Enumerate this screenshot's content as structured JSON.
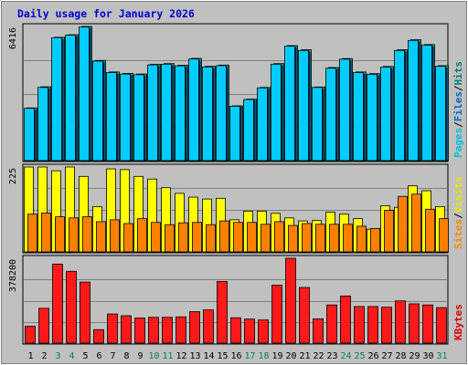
{
  "chart_data": {
    "type": "bar",
    "title": "Daily usage for January 2026",
    "days": [
      "1",
      "2",
      "3",
      "4",
      "5",
      "6",
      "7",
      "8",
      "9",
      "10",
      "11",
      "12",
      "13",
      "14",
      "15",
      "16",
      "17",
      "18",
      "19",
      "20",
      "21",
      "22",
      "23",
      "24",
      "25",
      "26",
      "27",
      "28",
      "29",
      "30",
      "31"
    ],
    "weekend_days": [
      "3",
      "4",
      "10",
      "11",
      "17",
      "18",
      "24",
      "25",
      "31"
    ],
    "panels": [
      {
        "id": "top",
        "max_label": "6416",
        "max": 6416,
        "legend": [
          {
            "text": "Pages",
            "color": "#00c0d8"
          },
          {
            "text": "/",
            "color": "#000000"
          },
          {
            "text": "Files",
            "color": "#0066cc"
          },
          {
            "text": "/",
            "color": "#000000"
          },
          {
            "text": "Hits",
            "color": "#008070"
          }
        ],
        "series": [
          {
            "name": "Hits",
            "color": "#00a890",
            "values": [
              2520,
              3530,
              5900,
              6020,
              6416,
              4790,
              4240,
              4170,
              4140,
              4610,
              4640,
              4560,
              4890,
              4510,
              4570,
              2620,
              2940,
              3500,
              4640,
              5500,
              5300,
              3520,
              4450,
              4880,
              4240,
              4160,
              4500,
              5300,
              5780,
              5550,
              4540
            ]
          },
          {
            "name": "Files",
            "color": "#0033aa",
            "values": [
              2400,
              3420,
              5800,
              5920,
              6300,
              4680,
              4130,
              4060,
              4030,
              4500,
              4530,
              4450,
              4780,
              4400,
              4460,
              2550,
              2860,
              3410,
              4530,
              5390,
              5190,
              3410,
              4340,
              4770,
              4130,
              4050,
              4390,
              5190,
              5670,
              5440,
              4430
            ]
          },
          {
            "name": "Pages",
            "color": "#00ccff",
            "values": [
              2500,
              3500,
              5880,
              6000,
              6390,
              4760,
              4210,
              4140,
              4110,
              4580,
              4610,
              4530,
              4860,
              4480,
              4540,
              2600,
              2920,
              3480,
              4610,
              5470,
              5270,
              3500,
              4420,
              4850,
              4210,
              4130,
              4470,
              5270,
              5750,
              5520,
              4510
            ]
          }
        ]
      },
      {
        "id": "mid",
        "max_label": "225",
        "max": 225,
        "legend": [
          {
            "text": "Sites",
            "color": "#ff8800"
          },
          {
            "text": "/",
            "color": "#000000"
          },
          {
            "text": "Visits",
            "color": "#e8e800"
          }
        ],
        "series": [
          {
            "name": "Visits",
            "color": "#ffff00",
            "values": [
              225,
              225,
              215,
              225,
              200,
              120,
              220,
              218,
              200,
              193,
              170,
              155,
              145,
              140,
              142,
              85,
              108,
              108,
              102,
              90,
              82,
              83,
              105,
              100,
              88,
              60,
              122,
              118,
              175,
              162,
              120
            ]
          },
          {
            "name": "Sites",
            "color": "#ff8000",
            "values": [
              100,
              103,
              93,
              90,
              93,
              80,
              85,
              75,
              88,
              78,
              72,
              77,
              78,
              72,
              82,
              78,
              78,
              73,
              80,
              70,
              75,
              73,
              73,
              73,
              68,
              62,
              110,
              147,
              153,
              113,
              88
            ]
          }
        ]
      },
      {
        "id": "bottom",
        "max_label": "378200",
        "max": 378200,
        "legend": [
          {
            "text": "KBytes",
            "color": "#dd0000"
          }
        ],
        "series": [
          {
            "name": "KBytes",
            "color": "#ff1a1a",
            "values": [
              75000,
              155000,
              352000,
              320000,
              272000,
              60000,
              130000,
              122000,
              112000,
              115000,
              115000,
              117000,
              140000,
              148000,
              275000,
              113000,
              107000,
              103000,
              258000,
              378200,
              248000,
              108000,
              170000,
              210000,
              163000,
              163000,
              160000,
              188000,
              175000,
              170000,
              158000
            ]
          }
        ]
      }
    ]
  }
}
